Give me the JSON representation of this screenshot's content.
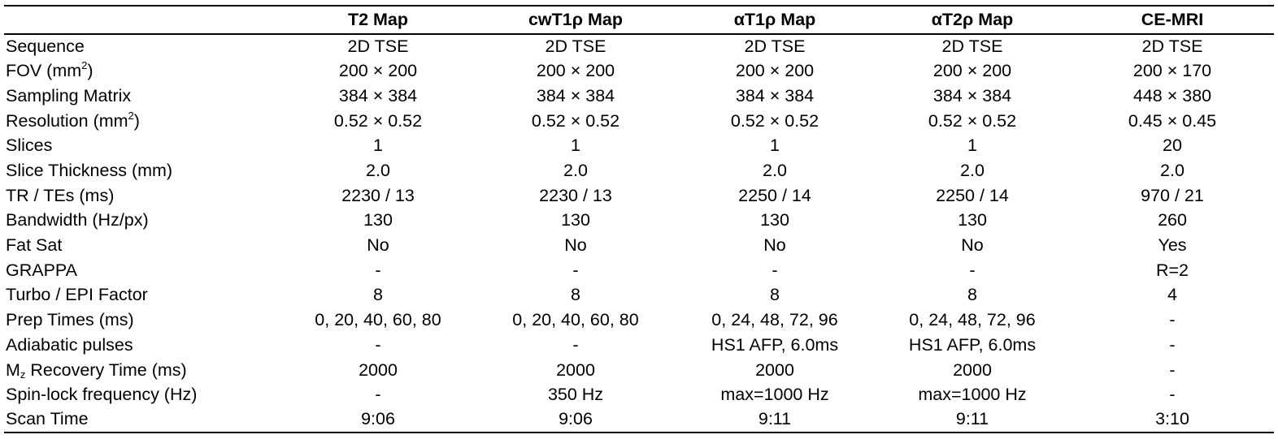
{
  "table": {
    "headers": [
      "",
      "T2 Map",
      "cwT1ρ Map",
      "αT1ρ Map",
      "αT2ρ Map",
      "CE-MRI"
    ],
    "rows": [
      {
        "label": "Sequence",
        "cells": [
          "2D TSE",
          "2D TSE",
          "2D TSE",
          "2D TSE",
          "2D TSE"
        ]
      },
      {
        "label_pre": "FOV (mm",
        "label_sup": "2",
        "label_post": ")",
        "cells": [
          "200 × 200",
          "200 × 200",
          "200 × 200",
          "200 × 200",
          "200 × 170"
        ]
      },
      {
        "label": "Sampling Matrix",
        "cells": [
          "384 × 384",
          "384 × 384",
          "384 × 384",
          "384 × 384",
          "448 × 380"
        ]
      },
      {
        "label_pre": "Resolution (mm",
        "label_sup": "2",
        "label_post": ")",
        "cells": [
          "0.52 × 0.52",
          "0.52 × 0.52",
          "0.52 × 0.52",
          "0.52 × 0.52",
          "0.45 × 0.45"
        ]
      },
      {
        "label": "Slices",
        "cells": [
          "1",
          "1",
          "1",
          "1",
          "20"
        ]
      },
      {
        "label": "Slice Thickness (mm)",
        "cells": [
          "2.0",
          "2.0",
          "2.0",
          "2.0",
          "2.0"
        ]
      },
      {
        "label": "TR / TEs (ms)",
        "cells": [
          "2230 / 13",
          "2230 / 13",
          "2250 / 14",
          "2250 / 14",
          "970 / 21"
        ]
      },
      {
        "label": "Bandwidth (Hz/px)",
        "cells": [
          "130",
          "130",
          "130",
          "130",
          "260"
        ]
      },
      {
        "label": "Fat Sat",
        "cells": [
          "No",
          "No",
          "No",
          "No",
          "Yes"
        ]
      },
      {
        "label": "GRAPPA",
        "cells": [
          "-",
          "-",
          "-",
          "-",
          "R=2"
        ]
      },
      {
        "label": "Turbo / EPI Factor",
        "cells": [
          "8",
          "8",
          "8",
          "8",
          "4"
        ]
      },
      {
        "label": "Prep Times (ms)",
        "cells": [
          "0, 20, 40, 60, 80",
          "0, 20, 40, 60, 80",
          "0, 24, 48, 72, 96",
          "0, 24, 48, 72, 96",
          "-"
        ]
      },
      {
        "label": "Adiabatic pulses",
        "cells": [
          "-",
          "-",
          "HS1 AFP, 6.0ms",
          "HS1 AFP, 6.0ms",
          "-"
        ]
      },
      {
        "label_pre": "M",
        "label_sub": "z",
        "label_post": " Recovery Time (ms)",
        "cells": [
          "2000",
          "2000",
          "2000",
          "2000",
          "-"
        ]
      },
      {
        "label": "Spin-lock frequency (Hz)",
        "cells": [
          "-",
          "350 Hz",
          "max=1000 Hz",
          "max=1000 Hz",
          "-"
        ]
      },
      {
        "label": "Scan Time",
        "cells": [
          "9:06",
          "9:06",
          "9:11",
          "9:11",
          "3:10"
        ]
      }
    ]
  }
}
